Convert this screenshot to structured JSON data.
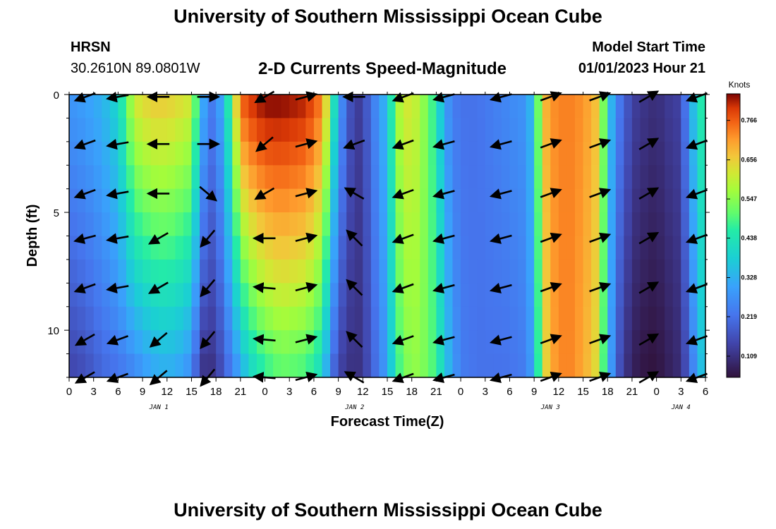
{
  "header": {
    "title": "University of Southern Mississippi Ocean Cube",
    "station": "HRSN",
    "coords": "30.2610N  89.0801W",
    "subtitle": "2-D Currents Speed-Magnitude",
    "model_start_label": "Model Start Time",
    "model_start_value": "01/01/2023 Hour 21"
  },
  "footer": {
    "title": "University of Southern Mississippi Ocean Cube"
  },
  "colors": {
    "low": "#30123b",
    "high": "#7a0403",
    "arrow": "#000000"
  },
  "chart_data": {
    "type": "heatmap",
    "title": "2-D Currents Speed-Magnitude",
    "xlabel": "Forecast Time(Z)",
    "ylabel": "Depth (ft)",
    "x_hours_range": [
      0,
      78
    ],
    "y_depth_range": [
      0,
      12
    ],
    "x_ticks": [
      "0",
      "3",
      "6",
      "9",
      "12",
      "15",
      "18",
      "21",
      "0",
      "3",
      "6",
      "9",
      "12",
      "15",
      "18",
      "21",
      "0",
      "3",
      "6",
      "9",
      "12",
      "15",
      "18",
      "21",
      "0",
      "3",
      "6"
    ],
    "y_ticks": [
      "0",
      "5",
      "10"
    ],
    "day_labels": [
      {
        "label": "JAN 1",
        "hour": 11
      },
      {
        "label": "JAN 2",
        "hour": 35
      },
      {
        "label": "JAN 3",
        "hour": 59
      },
      {
        "label": "JAN 4",
        "hour": 75
      }
    ],
    "colorbar": {
      "unit": "Knots",
      "min": 0.05,
      "max": 0.84,
      "ticks": [
        "0.766",
        "0.656",
        "0.547",
        "0.438",
        "0.328",
        "0.219",
        "0.109"
      ]
    },
    "speed_profile_hours": [
      0,
      2,
      4,
      6,
      8,
      10,
      12,
      13.5,
      15,
      16,
      17,
      18,
      19,
      20,
      21,
      22,
      24,
      26,
      29,
      31,
      32,
      33,
      35,
      36,
      37,
      39,
      40,
      41,
      42,
      43,
      45,
      46,
      47,
      48,
      50,
      52,
      54,
      56,
      57,
      58,
      59,
      61,
      63,
      65,
      66,
      67,
      68,
      69,
      70,
      72,
      73,
      75,
      76,
      77,
      78
    ],
    "speed_profile_surface": [
      0.28,
      0.3,
      0.33,
      0.4,
      0.62,
      0.66,
      0.66,
      0.64,
      0.62,
      0.4,
      0.22,
      0.26,
      0.34,
      0.55,
      0.76,
      0.8,
      0.84,
      0.84,
      0.82,
      0.74,
      0.55,
      0.3,
      0.12,
      0.14,
      0.22,
      0.35,
      0.55,
      0.62,
      0.62,
      0.58,
      0.45,
      0.3,
      0.24,
      0.22,
      0.22,
      0.24,
      0.26,
      0.28,
      0.38,
      0.66,
      0.72,
      0.74,
      0.72,
      0.66,
      0.4,
      0.26,
      0.2,
      0.14,
      0.12,
      0.1,
      0.12,
      0.14,
      0.3,
      0.4,
      0.5
    ],
    "speed_profile_bottom": [
      0.14,
      0.16,
      0.2,
      0.22,
      0.25,
      0.3,
      0.32,
      0.3,
      0.26,
      0.12,
      0.1,
      0.12,
      0.18,
      0.24,
      0.3,
      0.38,
      0.46,
      0.5,
      0.48,
      0.4,
      0.24,
      0.14,
      0.1,
      0.12,
      0.18,
      0.3,
      0.45,
      0.52,
      0.55,
      0.55,
      0.48,
      0.38,
      0.3,
      0.24,
      0.22,
      0.22,
      0.22,
      0.24,
      0.32,
      0.6,
      0.7,
      0.74,
      0.7,
      0.62,
      0.36,
      0.2,
      0.12,
      0.08,
      0.06,
      0.05,
      0.07,
      0.1,
      0.2,
      0.3,
      0.4
    ],
    "arrow_rows_depth_ft": [
      0.1,
      2.1,
      4.2,
      6.1,
      8.2,
      10.4,
      12.0
    ],
    "arrow_cols_hours": [
      2,
      6,
      11,
      17,
      24,
      29,
      35,
      41,
      46,
      53,
      59,
      65,
      71,
      77
    ],
    "arrow_dir_deg": [
      [
        200,
        190,
        180,
        0,
        210,
        15,
        180,
        200,
        195,
        195,
        20,
        20,
        30,
        200
      ],
      [
        200,
        190,
        180,
        0,
        220,
        15,
        200,
        200,
        195,
        195,
        20,
        20,
        30,
        200
      ],
      [
        200,
        190,
        180,
        320,
        210,
        15,
        150,
        200,
        195,
        195,
        20,
        20,
        30,
        200
      ],
      [
        195,
        190,
        210,
        230,
        180,
        15,
        135,
        200,
        195,
        195,
        20,
        20,
        30,
        200
      ],
      [
        200,
        190,
        210,
        230,
        175,
        15,
        135,
        200,
        195,
        195,
        20,
        20,
        30,
        200
      ],
      [
        210,
        200,
        220,
        230,
        175,
        15,
        135,
        200,
        195,
        195,
        20,
        20,
        30,
        200
      ],
      [
        210,
        200,
        220,
        230,
        175,
        15,
        150,
        200,
        195,
        195,
        20,
        20,
        30,
        200
      ]
    ]
  }
}
